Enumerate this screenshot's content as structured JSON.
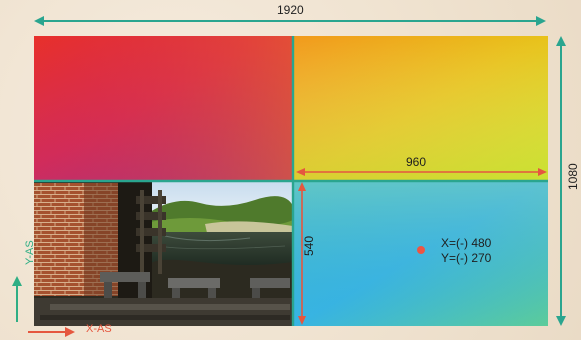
{
  "labels": {
    "total_width": "1920",
    "half_width": "960",
    "half_height": "540",
    "total_height": "1080",
    "coord_x": "X=(-) 480",
    "coord_y": "Y=(-) 270",
    "y_axis": "Y-AS",
    "x_axis": "X-AS"
  },
  "colors": {
    "teal_lines": "#2aa58f",
    "red_arrows": "#e5573f",
    "point": "#ec5544",
    "background": "#f1e6d6"
  },
  "photo": {
    "subject": "watermill-with-brick-wall-and-stream"
  }
}
